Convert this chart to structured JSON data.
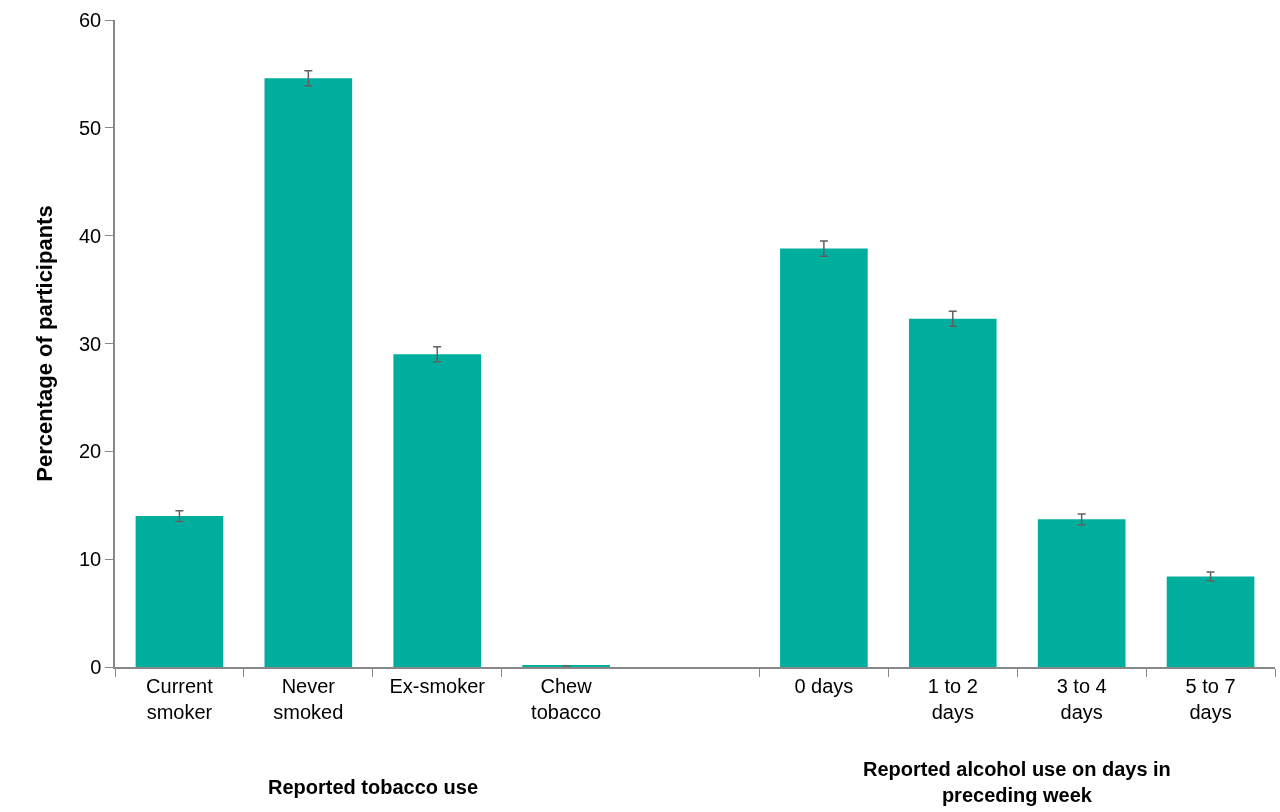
{
  "chart_data": {
    "type": "bar",
    "ylabel": "Percentage of participants",
    "categories": [
      "Current smoker",
      "Never smoked",
      "Ex-smoker",
      "Chew tobacco",
      null,
      "0 days",
      "1 to 2 days",
      "3 to 4 days",
      "5 to 7 days"
    ],
    "values": [
      14.0,
      54.6,
      29.0,
      0.1,
      null,
      38.8,
      32.3,
      13.7,
      8.4
    ],
    "errors": [
      0.5,
      0.7,
      0.7,
      null,
      null,
      0.7,
      0.7,
      0.5,
      0.4
    ],
    "color": "#00ae9e",
    "ylim": [
      0,
      60
    ],
    "yticks": [
      0,
      10,
      20,
      30,
      40,
      50,
      60
    ],
    "grid": false,
    "annotations": [
      "Reported tobacco use",
      "Reported alcohol use on days in preceding week"
    ]
  }
}
